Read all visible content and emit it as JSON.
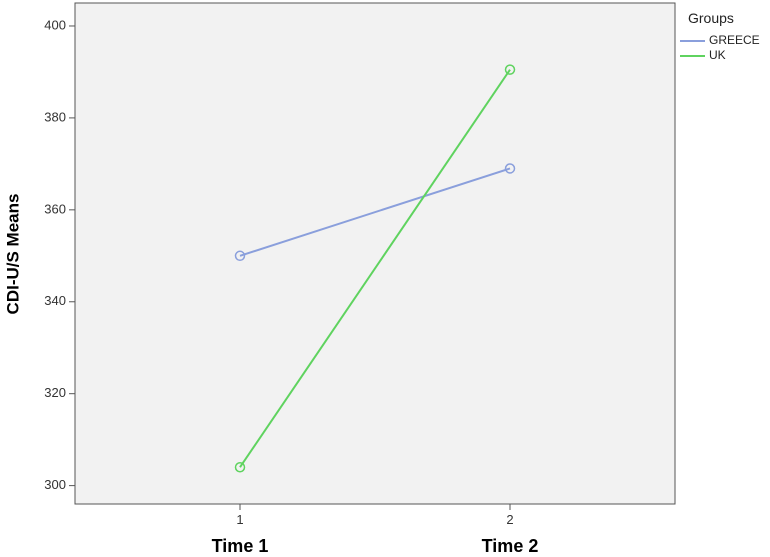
{
  "chart_data": {
    "type": "line",
    "title": "",
    "xlabel": "",
    "ylabel": "CDI-U/S Means",
    "categories": [
      "1",
      "2"
    ],
    "category_labels": [
      "Time 1",
      "Time 2"
    ],
    "yticks": [
      300,
      320,
      340,
      360,
      380,
      400
    ],
    "ylim": [
      296,
      405
    ],
    "grid": false,
    "legend": {
      "title": "Groups",
      "position": "top-right"
    },
    "series": [
      {
        "name": "GREECE",
        "color": "#8a9fdc",
        "values": [
          350,
          369
        ]
      },
      {
        "name": "UK",
        "color": "#5fd35f",
        "values": [
          304,
          390.5
        ]
      }
    ],
    "colors": {
      "plot_background": "#f2f2f2",
      "axis": "#555555"
    }
  }
}
